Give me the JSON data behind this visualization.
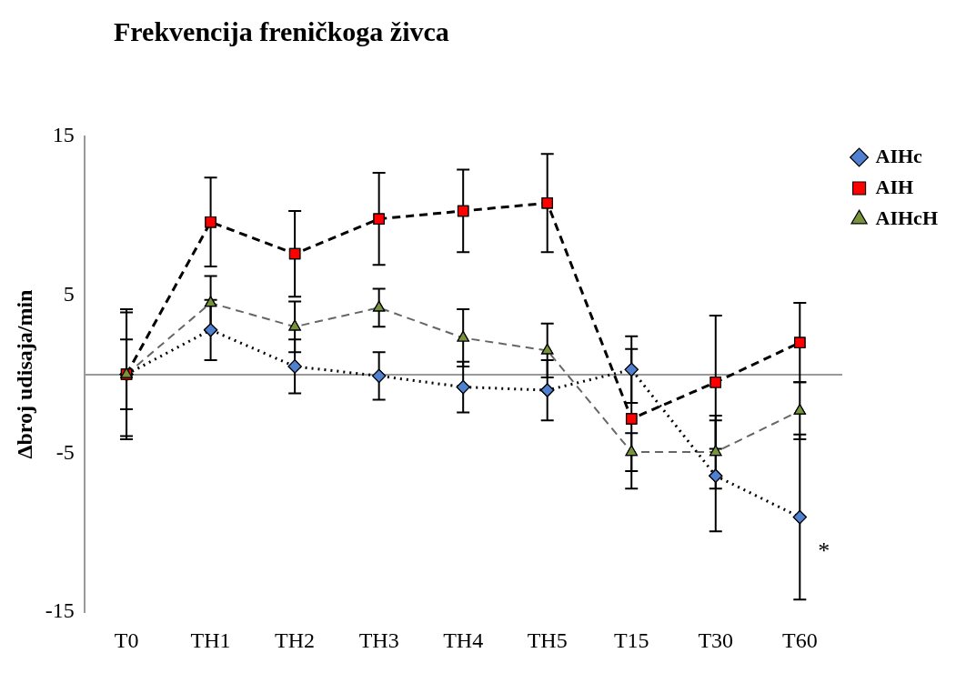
{
  "chart_data": {
    "type": "line",
    "title": "Frekvencija freničkoga živca",
    "ylabel": "Δbroj udisaja/min",
    "categories": [
      "T0",
      "TH1",
      "TH2",
      "TH3",
      "TH4",
      "TH5",
      "T15",
      "T30",
      "T60"
    ],
    "ylim": [
      -15,
      15
    ],
    "yticks": [
      -15,
      -5,
      5,
      15
    ],
    "grid": false,
    "legend": "top right",
    "series": [
      {
        "name": "AIHc",
        "color": "#4f81d0",
        "marker": "diamond",
        "line_style": "dotted",
        "values": [
          0,
          2.8,
          0.5,
          -0.1,
          -0.8,
          -1.0,
          0.3,
          -6.4,
          -9.0
        ],
        "errors": [
          2.2,
          1.9,
          1.7,
          1.5,
          1.6,
          1.9,
          2.1,
          3.5,
          5.2
        ]
      },
      {
        "name": "AIH",
        "color": "#ff0000",
        "marker": "square",
        "line_style": "dashed",
        "values": [
          0,
          9.6,
          7.6,
          9.8,
          10.3,
          10.8,
          -2.8,
          -0.5,
          2.0
        ],
        "errors": [
          4.1,
          2.8,
          2.7,
          2.9,
          2.6,
          3.1,
          4.4,
          4.2,
          2.5
        ]
      },
      {
        "name": "AIHcH",
        "color": "#77933c",
        "marker": "triangle",
        "line_style": "dashed",
        "values": [
          0,
          4.5,
          3.0,
          4.2,
          2.3,
          1.5,
          -4.9,
          -4.9,
          -2.3
        ],
        "errors": [
          3.9,
          1.7,
          1.6,
          1.2,
          1.8,
          1.7,
          1.2,
          2.3,
          1.8
        ]
      }
    ],
    "annotations": [
      {
        "text": "*",
        "x": "T60",
        "y": -11.2
      }
    ]
  }
}
